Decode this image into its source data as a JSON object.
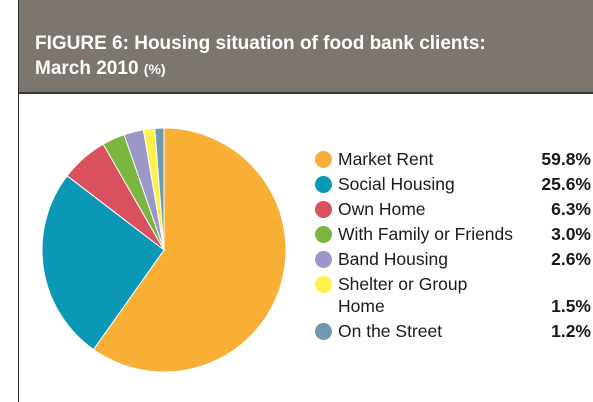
{
  "header": {
    "title_line1": "FIGURE 6: Housing situation of food bank clients:",
    "title_line2": "March 2010",
    "unit": "(%)"
  },
  "chart_data": {
    "type": "pie",
    "title": "FIGURE 6: Housing situation of food bank clients: March 2010 (%)",
    "legend_position": "right",
    "slices": [
      {
        "label": "Market Rent",
        "value": 59.8,
        "value_label": "59.8%",
        "color": "#f9ae36"
      },
      {
        "label": "Social Housing",
        "value": 25.6,
        "value_label": "25.6%",
        "color": "#0a98b6"
      },
      {
        "label": "Own Home",
        "value": 6.3,
        "value_label": "6.3%",
        "color": "#d9505f"
      },
      {
        "label": "With Family or Friends",
        "value": 3.0,
        "value_label": "3.0%",
        "color": "#7ab640"
      },
      {
        "label": "Band Housing",
        "value": 2.6,
        "value_label": "2.6%",
        "color": "#9b98c9"
      },
      {
        "label": "Shelter or Group Home",
        "label_line1": "Shelter or Group",
        "label_line2": "Home",
        "value": 1.5,
        "value_label": "1.5%",
        "color": "#fff04e"
      },
      {
        "label": "On the Street",
        "value": 1.2,
        "value_label": "1.2%",
        "color": "#6f99ad"
      }
    ]
  }
}
